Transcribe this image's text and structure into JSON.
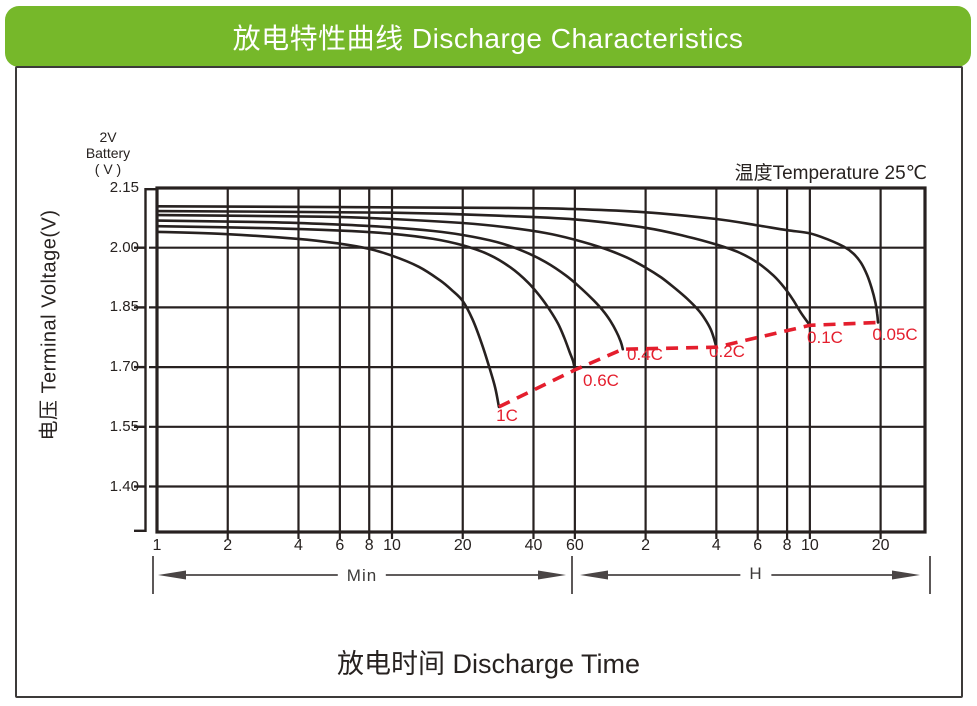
{
  "header": {
    "title": "放电特性曲线  Discharge Characteristics"
  },
  "colors": {
    "banner_green": "#76b82a",
    "ink": "#272120",
    "red": "#e41e2d",
    "arrow_gray": "#4a4545"
  },
  "chart": {
    "battery_note_lines": [
      "2V",
      "Battery",
      "( V )"
    ],
    "temperature_note": "温度Temperature 25℃",
    "y_title": "电压 Terminal Voltage(V)",
    "x_title": "放电时间  Discharge Time",
    "minutes_range_label": "Min",
    "hours_range_label": "H"
  },
  "chart_data": {
    "type": "line",
    "title": "放电特性曲线 Discharge Characteristics",
    "xlabel": "放电时间 Discharge Time",
    "ylabel": "电压 Terminal Voltage(V)",
    "annotation": "温度Temperature 25℃",
    "x_scale": "log-time",
    "x_unit_regions": [
      {
        "label": "Min",
        "from_minutes": 1,
        "to_minutes": 60
      },
      {
        "label": "H",
        "from_minutes": 60,
        "to_minutes": 1200
      }
    ],
    "x_ticks": [
      {
        "label": "1",
        "t_min": 1
      },
      {
        "label": "2",
        "t_min": 2
      },
      {
        "label": "4",
        "t_min": 4
      },
      {
        "label": "6",
        "t_min": 6
      },
      {
        "label": "8",
        "t_min": 8
      },
      {
        "label": "10",
        "t_min": 10
      },
      {
        "label": "20",
        "t_min": 20
      },
      {
        "label": "40",
        "t_min": 40
      },
      {
        "label": "60",
        "t_min": 60
      },
      {
        "label": "2",
        "t_min": 120
      },
      {
        "label": "4",
        "t_min": 240
      },
      {
        "label": "6",
        "t_min": 360
      },
      {
        "label": "8",
        "t_min": 480
      },
      {
        "label": "10",
        "t_min": 600
      },
      {
        "label": "20",
        "t_min": 1200
      }
    ],
    "y_ticks": [
      "2.15",
      "2.00",
      "1.85",
      "1.70",
      "1.55",
      "1.40"
    ],
    "ylim": [
      1.29,
      2.15
    ],
    "series": [
      {
        "name": "1C",
        "points": [
          [
            1,
            2.04
          ],
          [
            2,
            2.034
          ],
          [
            4,
            2.022
          ],
          [
            6,
            2.01
          ],
          [
            8,
            1.997
          ],
          [
            10,
            1.98
          ],
          [
            13,
            1.952
          ],
          [
            16,
            1.918
          ],
          [
            18,
            1.893
          ],
          [
            20,
            1.866
          ],
          [
            22,
            1.82
          ],
          [
            24,
            1.762
          ],
          [
            26,
            1.698
          ],
          [
            27.5,
            1.648
          ],
          [
            28.5,
            1.6
          ]
        ]
      },
      {
        "name": "0.6C",
        "points": [
          [
            1,
            2.054
          ],
          [
            3,
            2.049
          ],
          [
            6,
            2.043
          ],
          [
            10,
            2.035
          ],
          [
            15,
            2.022
          ],
          [
            20,
            2.006
          ],
          [
            26,
            1.982
          ],
          [
            32,
            1.95
          ],
          [
            38,
            1.912
          ],
          [
            43,
            1.875
          ],
          [
            47,
            1.843
          ],
          [
            51,
            1.808
          ],
          [
            54,
            1.775
          ],
          [
            57,
            1.738
          ],
          [
            59,
            1.714
          ],
          [
            60,
            1.693
          ]
        ]
      },
      {
        "name": "0.4C",
        "points": [
          [
            1,
            2.068
          ],
          [
            3,
            2.064
          ],
          [
            6,
            2.058
          ],
          [
            10,
            2.051
          ],
          [
            15,
            2.042
          ],
          [
            20,
            2.032
          ],
          [
            28,
            2.014
          ],
          [
            36,
            1.992
          ],
          [
            45,
            1.964
          ],
          [
            55,
            1.93
          ],
          [
            64,
            1.897
          ],
          [
            72,
            1.868
          ],
          [
            79,
            1.842
          ],
          [
            85,
            1.816
          ],
          [
            90,
            1.79
          ],
          [
            94,
            1.764
          ],
          [
            96,
            1.745
          ]
        ]
      },
      {
        "name": "0.2C",
        "points": [
          [
            1,
            2.082
          ],
          [
            5,
            2.078
          ],
          [
            10,
            2.072
          ],
          [
            20,
            2.062
          ],
          [
            30,
            2.052
          ],
          [
            45,
            2.037
          ],
          [
            60,
            2.02
          ],
          [
            80,
            1.998
          ],
          [
            100,
            1.975
          ],
          [
            120,
            1.95
          ],
          [
            140,
            1.925
          ],
          [
            160,
            1.898
          ],
          [
            180,
            1.872
          ],
          [
            200,
            1.845
          ],
          [
            215,
            1.82
          ],
          [
            227,
            1.795
          ],
          [
            235,
            1.77
          ],
          [
            240,
            1.75
          ]
        ]
      },
      {
        "name": "0.1C",
        "points": [
          [
            1,
            2.092
          ],
          [
            10,
            2.088
          ],
          [
            30,
            2.08
          ],
          [
            60,
            2.071
          ],
          [
            120,
            2.05
          ],
          [
            180,
            2.028
          ],
          [
            240,
            2.008
          ],
          [
            300,
            1.988
          ],
          [
            360,
            1.962
          ],
          [
            420,
            1.93
          ],
          [
            470,
            1.898
          ],
          [
            510,
            1.868
          ],
          [
            545,
            1.84
          ],
          [
            575,
            1.82
          ],
          [
            600,
            1.805
          ]
        ]
      },
      {
        "name": "0.05C",
        "points": [
          [
            1,
            2.104
          ],
          [
            30,
            2.1
          ],
          [
            60,
            2.097
          ],
          [
            120,
            2.089
          ],
          [
            240,
            2.072
          ],
          [
            360,
            2.056
          ],
          [
            480,
            2.044
          ],
          [
            600,
            2.036
          ],
          [
            720,
            2.02
          ],
          [
            840,
            2.002
          ],
          [
            920,
            1.985
          ],
          [
            990,
            1.962
          ],
          [
            1050,
            1.932
          ],
          [
            1100,
            1.898
          ],
          [
            1140,
            1.862
          ],
          [
            1160,
            1.835
          ],
          [
            1170,
            1.812
          ]
        ]
      }
    ],
    "cutoff_locus": {
      "style": "dashed",
      "points": [
        [
          28.5,
          1.6
        ],
        [
          60,
          1.693
        ],
        [
          96,
          1.745
        ],
        [
          240,
          1.75
        ],
        [
          600,
          1.805
        ],
        [
          1170,
          1.812
        ]
      ]
    }
  }
}
